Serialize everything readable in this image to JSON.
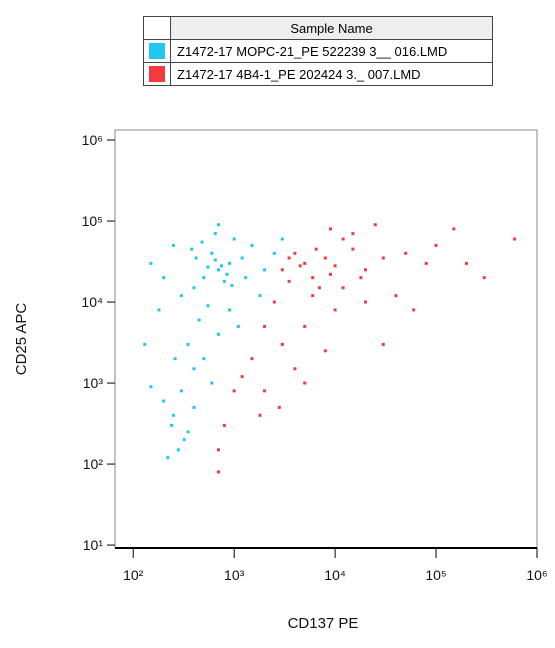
{
  "chart_data": {
    "type": "scatter",
    "x_label": "CD137 PE",
    "y_label": "CD25 APC",
    "legend_title": "Sample Name",
    "log_x": true,
    "log_y": true,
    "xlim": [
      66,
      1000000
    ],
    "ylim": [
      9.2,
      1330000
    ],
    "xticks": [
      {
        "value": 100,
        "label": "10²"
      },
      {
        "value": 1000,
        "label": "10³"
      },
      {
        "value": 10000,
        "label": "10⁴"
      },
      {
        "value": 100000,
        "label": "10⁵"
      },
      {
        "value": 1000000,
        "label": "10⁶"
      }
    ],
    "yticks": [
      {
        "value": 10,
        "label": "10¹"
      },
      {
        "value": 100,
        "label": "10²"
      },
      {
        "value": 1000,
        "label": "10³"
      },
      {
        "value": 10000,
        "label": "10⁴"
      },
      {
        "value": 100000,
        "label": "10⁵"
      },
      {
        "value": 1000000,
        "label": "10⁶"
      }
    ],
    "series": [
      {
        "name": "Z1472-17 MOPC-21_PE 522239 3__ 016.LMD",
        "color": "#1ec8f0",
        "x": [
          700,
          500,
          900,
          400,
          600,
          1200,
          800,
          300,
          1500,
          1000,
          550,
          450,
          350,
          400,
          300,
          250,
          350,
          280,
          220,
          400,
          500,
          700,
          900,
          200,
          150,
          180,
          250,
          650,
          2000,
          2500,
          1800,
          1100,
          600,
          320,
          240,
          150,
          130,
          750,
          850,
          650,
          550,
          950,
          1300,
          420,
          380,
          480,
          3000,
          700,
          260,
          200
        ],
        "values": [
          25000,
          20000,
          30000,
          15000,
          40000,
          35000,
          18000,
          12000,
          50000,
          60000,
          9000,
          6000,
          3000,
          1500,
          800,
          400,
          250,
          150,
          120,
          500,
          2000,
          4000,
          8000,
          20000,
          30000,
          8000,
          50000,
          70000,
          25000,
          40000,
          12000,
          5000,
          1000,
          200,
          300,
          900,
          3000,
          28000,
          22000,
          33000,
          27000,
          16000,
          20000,
          35000,
          45000,
          55000,
          60000,
          90000,
          2000,
          600
        ]
      },
      {
        "name": "Z1472-17 4B4-1_PE 202424 3._ 007.LMD",
        "color": "#f03c3c",
        "x": [
          5000,
          3000,
          8000,
          6000,
          4000,
          10000,
          15000,
          20000,
          12000,
          7000,
          30000,
          50000,
          80000,
          100000,
          200000,
          3500,
          4500,
          9000,
          2500,
          2000,
          1500,
          1000,
          800,
          700,
          1200,
          3000,
          5000,
          10000,
          20000,
          40000,
          60000,
          2000,
          4000,
          30000,
          5000,
          1800,
          700,
          15000,
          25000,
          9000,
          6000,
          3500,
          12000,
          600000,
          300000,
          150000,
          18000,
          6500,
          2800,
          8000
        ],
        "values": [
          30000,
          25000,
          35000,
          20000,
          40000,
          28000,
          45000,
          25000,
          60000,
          15000,
          35000,
          40000,
          30000,
          50000,
          30000,
          35000,
          28000,
          22000,
          10000,
          5000,
          2000,
          800,
          300,
          150,
          1200,
          3000,
          5000,
          8000,
          10000,
          12000,
          8000,
          800,
          1500,
          3000,
          1000,
          400,
          80,
          70000,
          90000,
          80000,
          12000,
          18000,
          15000,
          60000,
          20000,
          80000,
          20000,
          45000,
          500,
          2500
        ]
      }
    ]
  }
}
